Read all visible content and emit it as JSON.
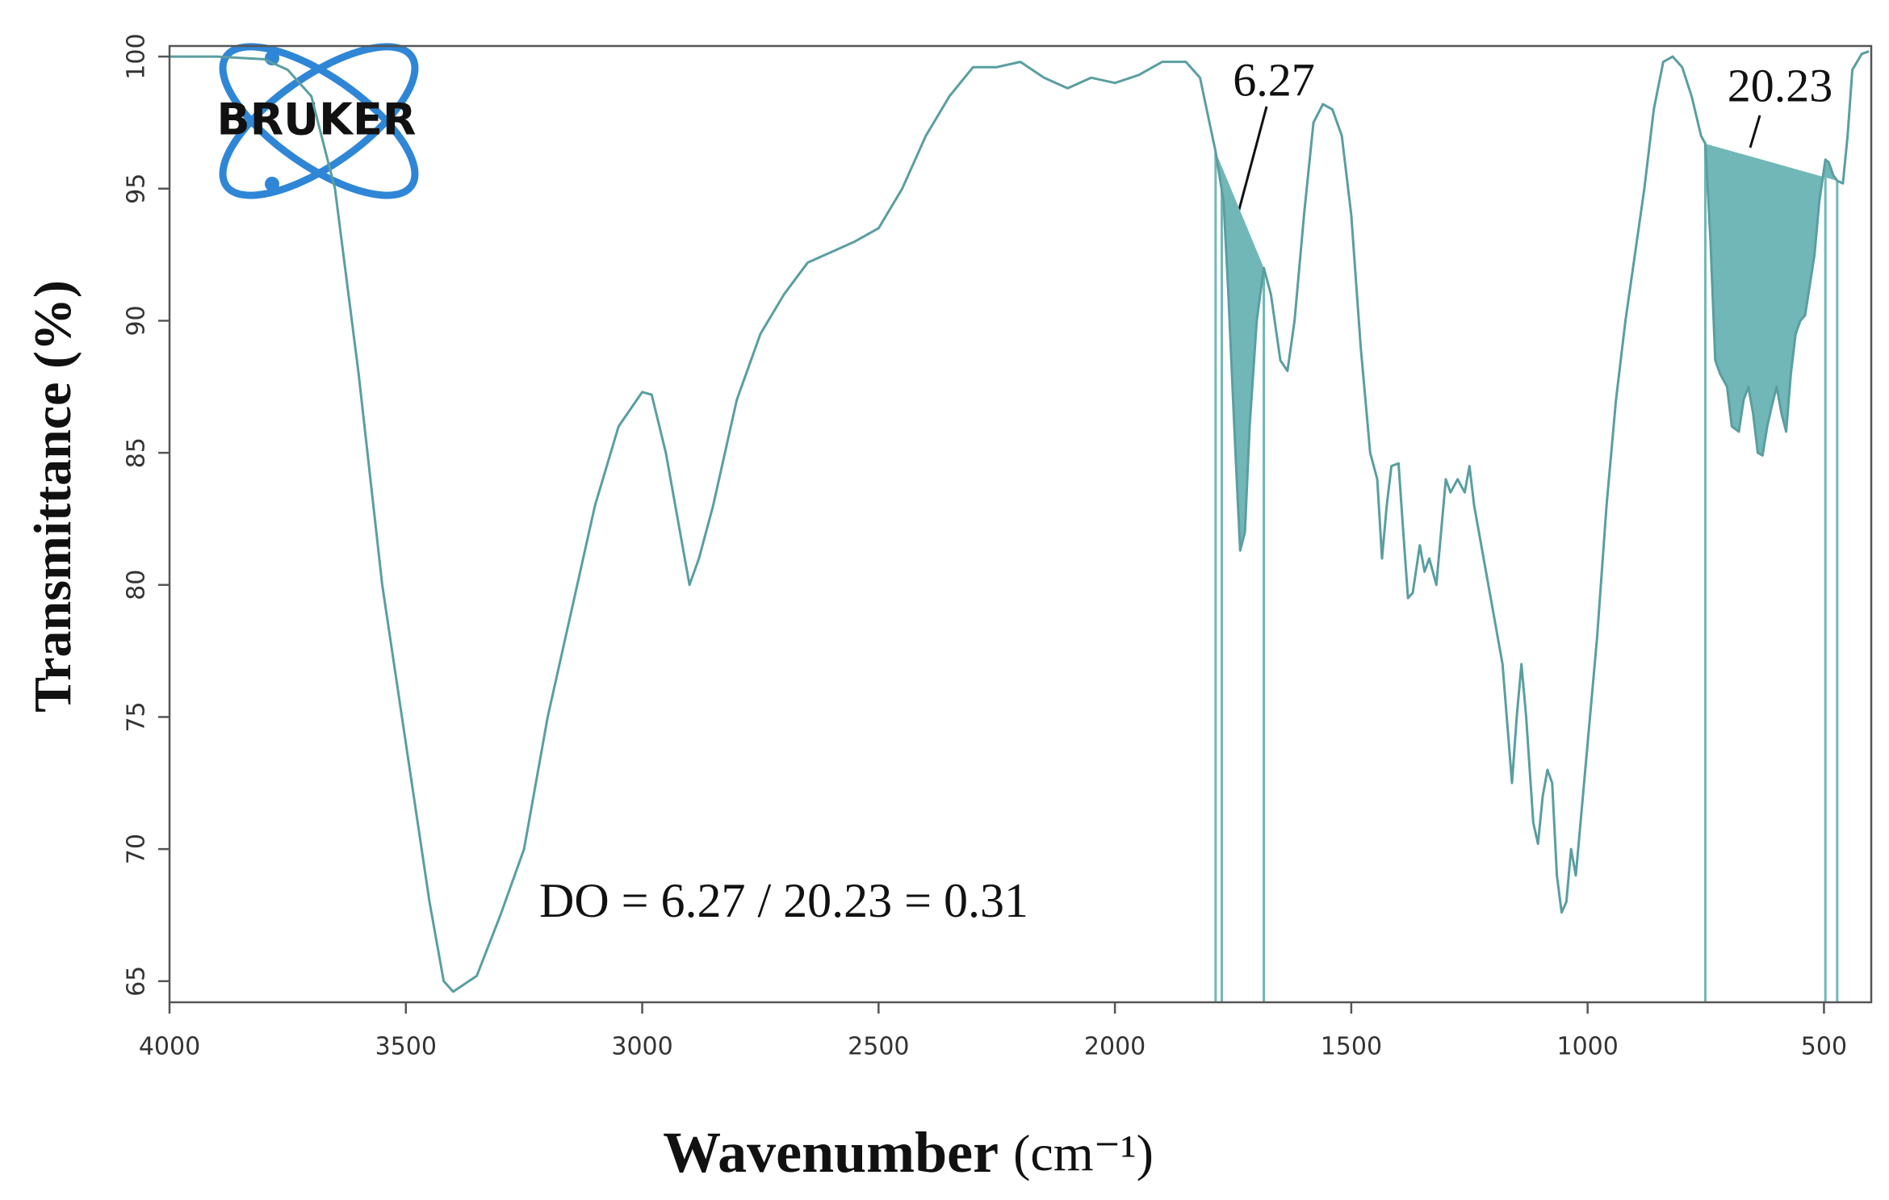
{
  "chart_data": {
    "type": "line",
    "logo": "BRUKER",
    "y_label": "Transmittance (%)",
    "x_label": "Wavenumber",
    "x_label_unit": "(cm⁻¹)",
    "annotation": "DO = 6.27 / 20.23 = 0.31",
    "color": "#5a9ea0",
    "fill_color": "#72b7b7",
    "xlim": [
      4000,
      400
    ],
    "ylim": [
      64.2,
      100.4
    ],
    "xticks": [
      4000,
      3500,
      3000,
      2500,
      2000,
      1500,
      1000,
      500
    ],
    "yticks": [
      65,
      70,
      75,
      80,
      85,
      90,
      95,
      100
    ],
    "regions": [
      {
        "from": 1787,
        "to": 1685,
        "label": "6.27"
      },
      {
        "from": 751,
        "to": 472,
        "label": "20.23"
      }
    ],
    "integration_lines": [
      1787,
      1774,
      1685,
      751,
      497,
      472
    ],
    "x": [
      4000,
      3900,
      3800,
      3750,
      3700,
      3650,
      3600,
      3550,
      3500,
      3450,
      3420,
      3400,
      3350,
      3300,
      3250,
      3200,
      3150,
      3100,
      3050,
      3000,
      2980,
      2950,
      2920,
      2900,
      2880,
      2850,
      2800,
      2750,
      2700,
      2650,
      2600,
      2550,
      2500,
      2450,
      2400,
      2350,
      2300,
      2250,
      2200,
      2150,
      2100,
      2050,
      2000,
      1950,
      1900,
      1850,
      1820,
      1800,
      1787,
      1770,
      1760,
      1745,
      1735,
      1725,
      1715,
      1700,
      1685,
      1670,
      1650,
      1635,
      1620,
      1600,
      1580,
      1560,
      1540,
      1520,
      1500,
      1480,
      1460,
      1445,
      1435,
      1425,
      1415,
      1400,
      1390,
      1380,
      1370,
      1355,
      1345,
      1335,
      1320,
      1310,
      1300,
      1290,
      1275,
      1260,
      1250,
      1240,
      1230,
      1220,
      1200,
      1180,
      1160,
      1150,
      1140,
      1130,
      1115,
      1105,
      1095,
      1085,
      1075,
      1065,
      1055,
      1045,
      1035,
      1025,
      1015,
      1000,
      980,
      960,
      940,
      920,
      900,
      880,
      860,
      840,
      820,
      800,
      780,
      760,
      751,
      740,
      730,
      720,
      705,
      695,
      680,
      670,
      660,
      650,
      640,
      630,
      620,
      610,
      600,
      590,
      580,
      570,
      560,
      550,
      540,
      520,
      510,
      497,
      490,
      480,
      472,
      460,
      450,
      440,
      420,
      405
    ],
    "values": [
      100,
      100,
      99.9,
      99.5,
      98.5,
      95,
      88,
      80,
      74,
      68,
      65,
      64.6,
      65.2,
      67.5,
      70,
      75,
      79,
      83,
      86,
      87.3,
      87.2,
      85,
      82,
      80,
      81,
      83,
      87,
      89.5,
      91,
      92.2,
      92.6,
      93,
      93.5,
      95,
      97,
      98.5,
      99.6,
      99.6,
      99.8,
      99.2,
      98.8,
      99.2,
      99,
      99.3,
      99.8,
      99.8,
      99.2,
      97.5,
      96.4,
      94.5,
      91,
      85,
      81.3,
      82,
      86,
      90,
      92,
      91,
      88.5,
      88.1,
      90,
      94,
      97.5,
      98.2,
      98,
      97,
      94,
      89,
      85,
      84,
      81,
      83,
      84.5,
      84.6,
      82,
      79.5,
      79.7,
      81.5,
      80.5,
      81,
      80,
      82,
      84,
      83.5,
      84,
      83.5,
      84.5,
      83,
      82,
      81,
      79,
      77,
      72.5,
      75,
      77,
      75,
      71,
      70.2,
      72,
      73,
      72.5,
      69,
      67.6,
      68,
      70,
      69,
      71,
      74,
      78,
      83,
      87,
      90,
      92.5,
      95,
      98,
      99.8,
      100,
      99.6,
      98.5,
      97,
      96.7,
      93,
      88.5,
      88,
      87.5,
      86,
      85.8,
      87,
      87.5,
      86.5,
      85,
      84.9,
      86,
      86.8,
      87.5,
      86.5,
      85.8,
      88,
      89.5,
      90,
      90.2,
      92.5,
      94.5,
      96.1,
      96,
      95.5,
      95.3,
      95.2,
      97,
      99.5,
      100.1,
      100.2
    ]
  }
}
